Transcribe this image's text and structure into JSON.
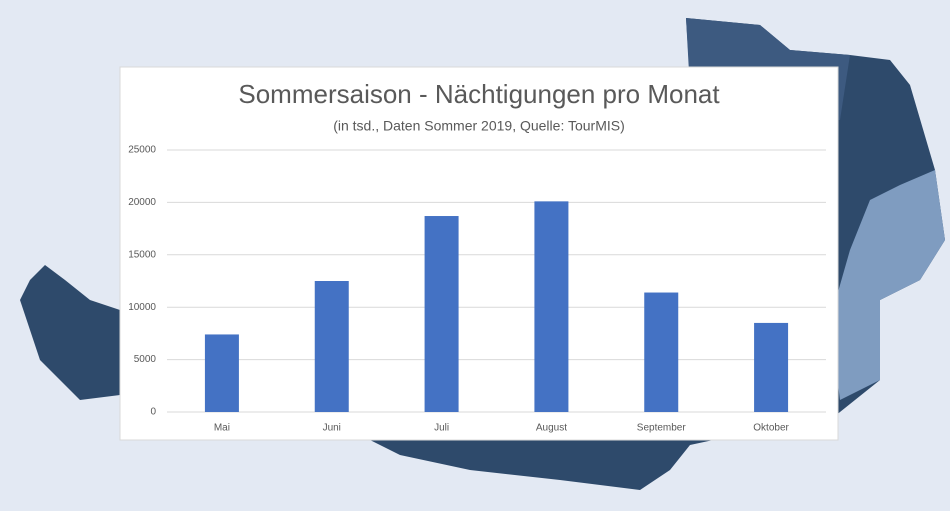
{
  "chart_data": {
    "type": "bar",
    "title": "Sommersaison - Nächtigungen pro Monat",
    "subtitle": "(in tsd., Daten Sommer 2019, Quelle: TourMIS)",
    "categories": [
      "Mai",
      "Juni",
      "Juli",
      "August",
      "September",
      "Oktober"
    ],
    "values": [
      7400,
      12500,
      18700,
      20100,
      11400,
      8500
    ],
    "color": "#4472c4",
    "ylim": [
      0,
      25000
    ],
    "yticks": [
      0,
      5000,
      10000,
      15000,
      20000,
      25000
    ],
    "grid": true
  }
}
